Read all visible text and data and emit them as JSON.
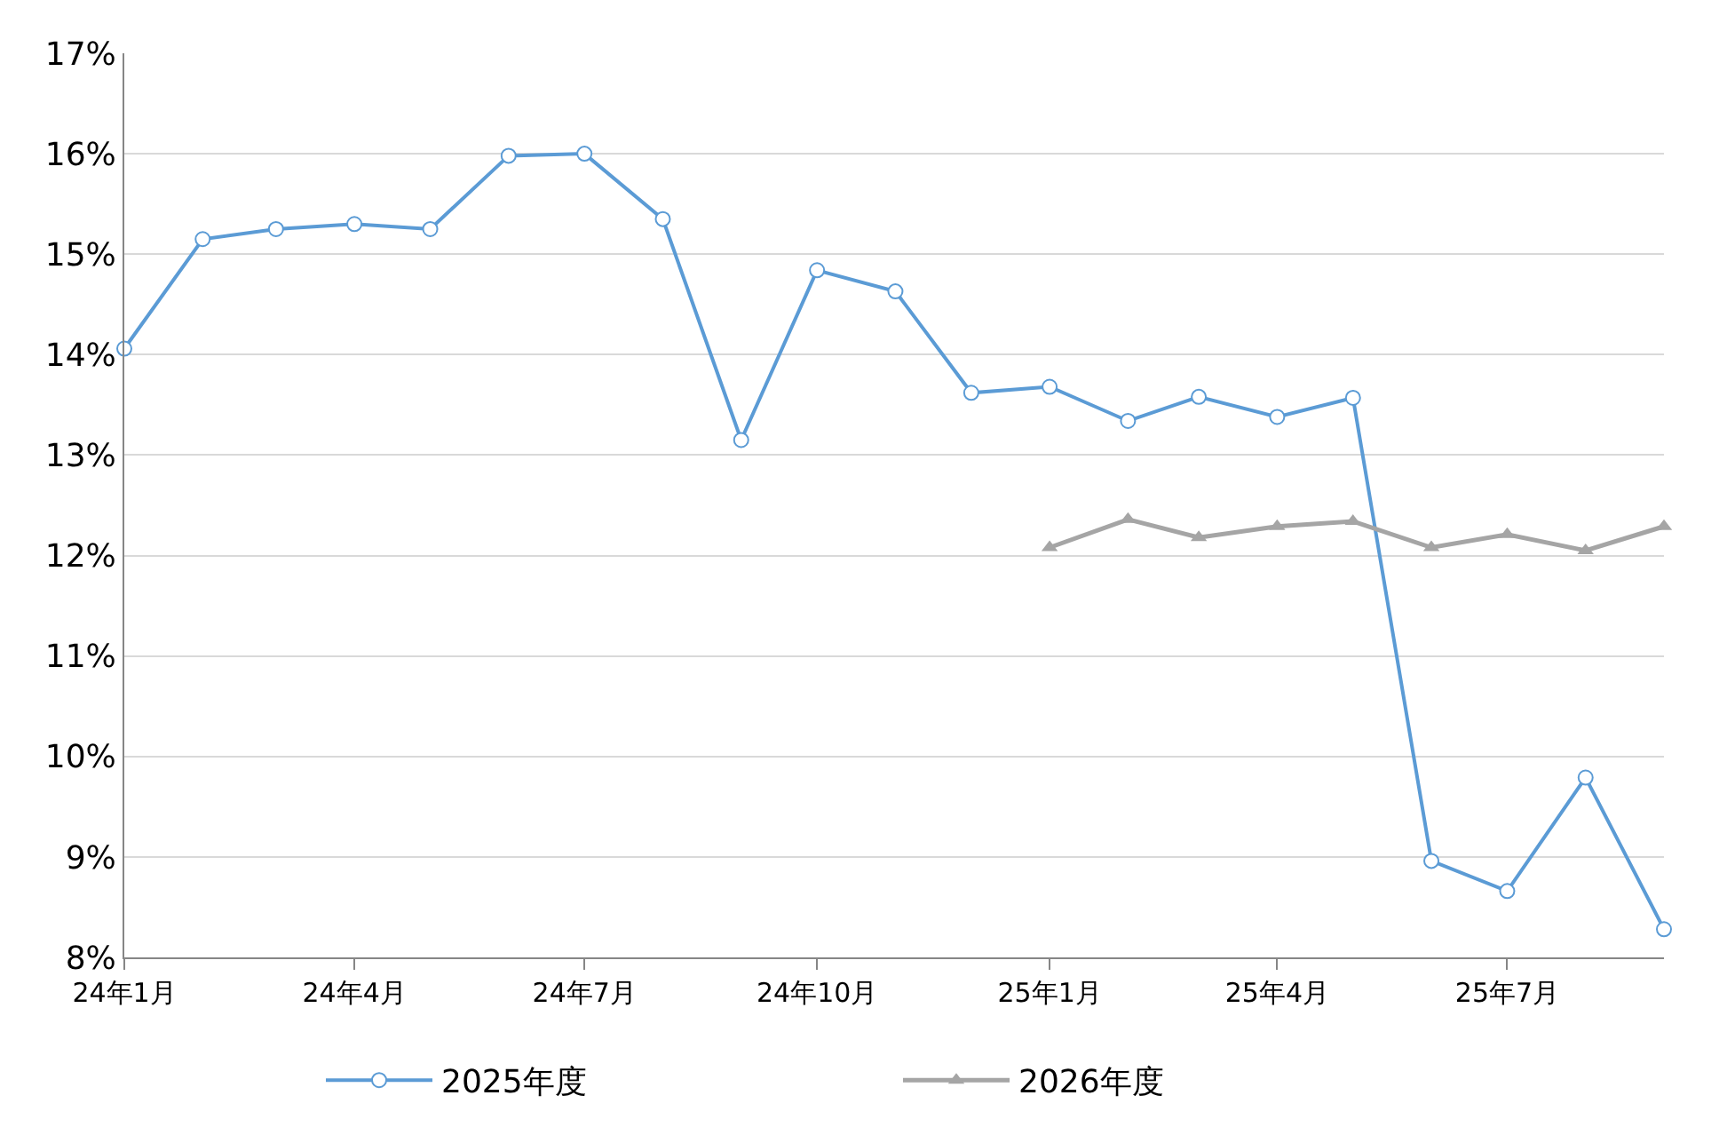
{
  "chart_data": {
    "type": "line",
    "x": [
      "2024-01",
      "2024-02",
      "2024-03",
      "2024-04",
      "2024-05",
      "2024-06",
      "2024-07",
      "2024-08",
      "2024-09",
      "2024-10",
      "2024-11",
      "2024-12",
      "2025-01",
      "2025-02",
      "2025-03",
      "2025-04",
      "2025-05",
      "2025-06",
      "2025-07",
      "2025-08",
      "2025-09"
    ],
    "series": [
      {
        "name": "2025年度",
        "color": "#5b9bd5",
        "marker": "circle",
        "values": [
          14.06,
          15.15,
          15.25,
          15.3,
          15.25,
          15.98,
          16.0,
          15.35,
          13.15,
          14.84,
          14.63,
          13.62,
          13.68,
          13.34,
          13.58,
          13.38,
          13.57,
          8.96,
          8.66,
          9.79,
          8.28
        ]
      },
      {
        "name": "2026年度",
        "color": "#a5a5a5",
        "marker": "triangle",
        "values": [
          null,
          null,
          null,
          null,
          null,
          null,
          null,
          null,
          null,
          null,
          null,
          null,
          12.08,
          12.36,
          12.18,
          12.29,
          12.34,
          12.08,
          12.21,
          12.05,
          12.29
        ]
      }
    ],
    "xlim": [
      "2024-01",
      "2025-09"
    ],
    "xticks": [
      {
        "value": "2024-01",
        "label": "24年1月"
      },
      {
        "value": "2024-04",
        "label": "24年4月"
      },
      {
        "value": "2024-07",
        "label": "24年7月"
      },
      {
        "value": "2024-10",
        "label": "24年10月"
      },
      {
        "value": "2025-01",
        "label": "25年1月"
      },
      {
        "value": "2025-04",
        "label": "25年4月"
      },
      {
        "value": "2025-07",
        "label": "25年7月"
      }
    ],
    "ylim": [
      8,
      17
    ],
    "yticks": [
      {
        "value": 8,
        "label": "8%"
      },
      {
        "value": 9,
        "label": "9%"
      },
      {
        "value": 10,
        "label": "10%"
      },
      {
        "value": 11,
        "label": "11%"
      },
      {
        "value": 12,
        "label": "12%"
      },
      {
        "value": 13,
        "label": "13%"
      },
      {
        "value": 14,
        "label": "14%"
      },
      {
        "value": 15,
        "label": "15%"
      },
      {
        "value": 16,
        "label": "16%"
      },
      {
        "value": 17,
        "label": "17%"
      }
    ],
    "grid": "y",
    "legend": "bottom",
    "line_style": "solid"
  }
}
